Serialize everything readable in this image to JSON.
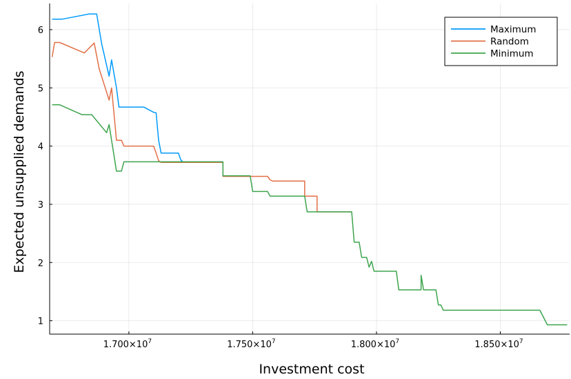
{
  "chart_data": {
    "type": "line",
    "title": "",
    "xlabel": "Investment cost",
    "ylabel": "Expected unsupplied demands",
    "xlim": [
      16680000,
      18780000
    ],
    "ylim": [
      0.77,
      6.45
    ],
    "x_ticks": [
      {
        "value": 17000000,
        "label": "1.700×10",
        "exp": "7"
      },
      {
        "value": 17500000,
        "label": "1.750×10",
        "exp": "7"
      },
      {
        "value": 18000000,
        "label": "1.800×10",
        "exp": "7"
      },
      {
        "value": 18500000,
        "label": "1.850×10",
        "exp": "7"
      }
    ],
    "y_ticks": [
      {
        "value": 1,
        "label": "1"
      },
      {
        "value": 2,
        "label": "2"
      },
      {
        "value": 3,
        "label": "3"
      },
      {
        "value": 4,
        "label": "4"
      },
      {
        "value": 5,
        "label": "5"
      },
      {
        "value": 6,
        "label": "6"
      }
    ],
    "grid": true,
    "legend_position": "top-right",
    "series": [
      {
        "name": "Maximum",
        "color": "#009AFA",
        "x": [
          16690000,
          16730000,
          16840000,
          16870000,
          16890000,
          16920000,
          16930000,
          16950000,
          16960000,
          17060000,
          17100000,
          17110000,
          17120000,
          17130000,
          17200000,
          17210000,
          17220000,
          17380000
        ],
        "y": [
          6.18,
          6.18,
          6.27,
          6.27,
          5.76,
          5.2,
          5.48,
          5.0,
          4.67,
          4.67,
          4.58,
          4.57,
          4.1,
          3.88,
          3.88,
          3.76,
          3.72,
          3.72
        ]
      },
      {
        "name": "Random",
        "color": "#E26F46",
        "x": [
          16690000,
          16700000,
          16720000,
          16820000,
          16860000,
          16880000,
          16920000,
          16930000,
          16950000,
          16960000,
          16970000,
          16980000,
          16990000,
          17100000,
          17110000,
          17120000,
          17130000,
          17380000,
          17380000,
          17560000,
          17570000,
          17580000,
          17710000,
          17710000,
          17760000,
          17760000,
          17900000
        ],
        "y": [
          5.53,
          5.78,
          5.78,
          5.6,
          5.77,
          5.33,
          4.79,
          5.0,
          4.1,
          4.1,
          4.1,
          4.0,
          4.0,
          4.0,
          3.88,
          3.75,
          3.72,
          3.72,
          3.48,
          3.48,
          3.42,
          3.4,
          3.4,
          3.14,
          3.14,
          2.87,
          2.87
        ]
      },
      {
        "name": "Minimum",
        "color": "#3DA44D",
        "x": [
          16690000,
          16720000,
          16810000,
          16850000,
          16910000,
          16920000,
          16930000,
          16950000,
          16970000,
          16980000,
          17380000,
          17380000,
          17490000,
          17500000,
          17560000,
          17570000,
          17710000,
          17720000,
          17900000,
          17910000,
          17930000,
          17940000,
          17960000,
          17970000,
          17980000,
          17990000,
          18080000,
          18090000,
          18180000,
          18180000,
          18190000,
          18240000,
          18250000,
          18260000,
          18270000,
          18660000,
          18690000,
          18770000
        ],
        "y": [
          4.71,
          4.71,
          4.54,
          4.54,
          4.23,
          4.37,
          4.1,
          3.57,
          3.57,
          3.73,
          3.73,
          3.49,
          3.49,
          3.22,
          3.22,
          3.14,
          3.14,
          2.87,
          2.87,
          2.35,
          2.35,
          2.09,
          2.09,
          1.92,
          2.02,
          1.85,
          1.85,
          1.53,
          1.53,
          1.78,
          1.53,
          1.53,
          1.27,
          1.27,
          1.18,
          1.18,
          0.93,
          0.93
        ]
      }
    ]
  }
}
